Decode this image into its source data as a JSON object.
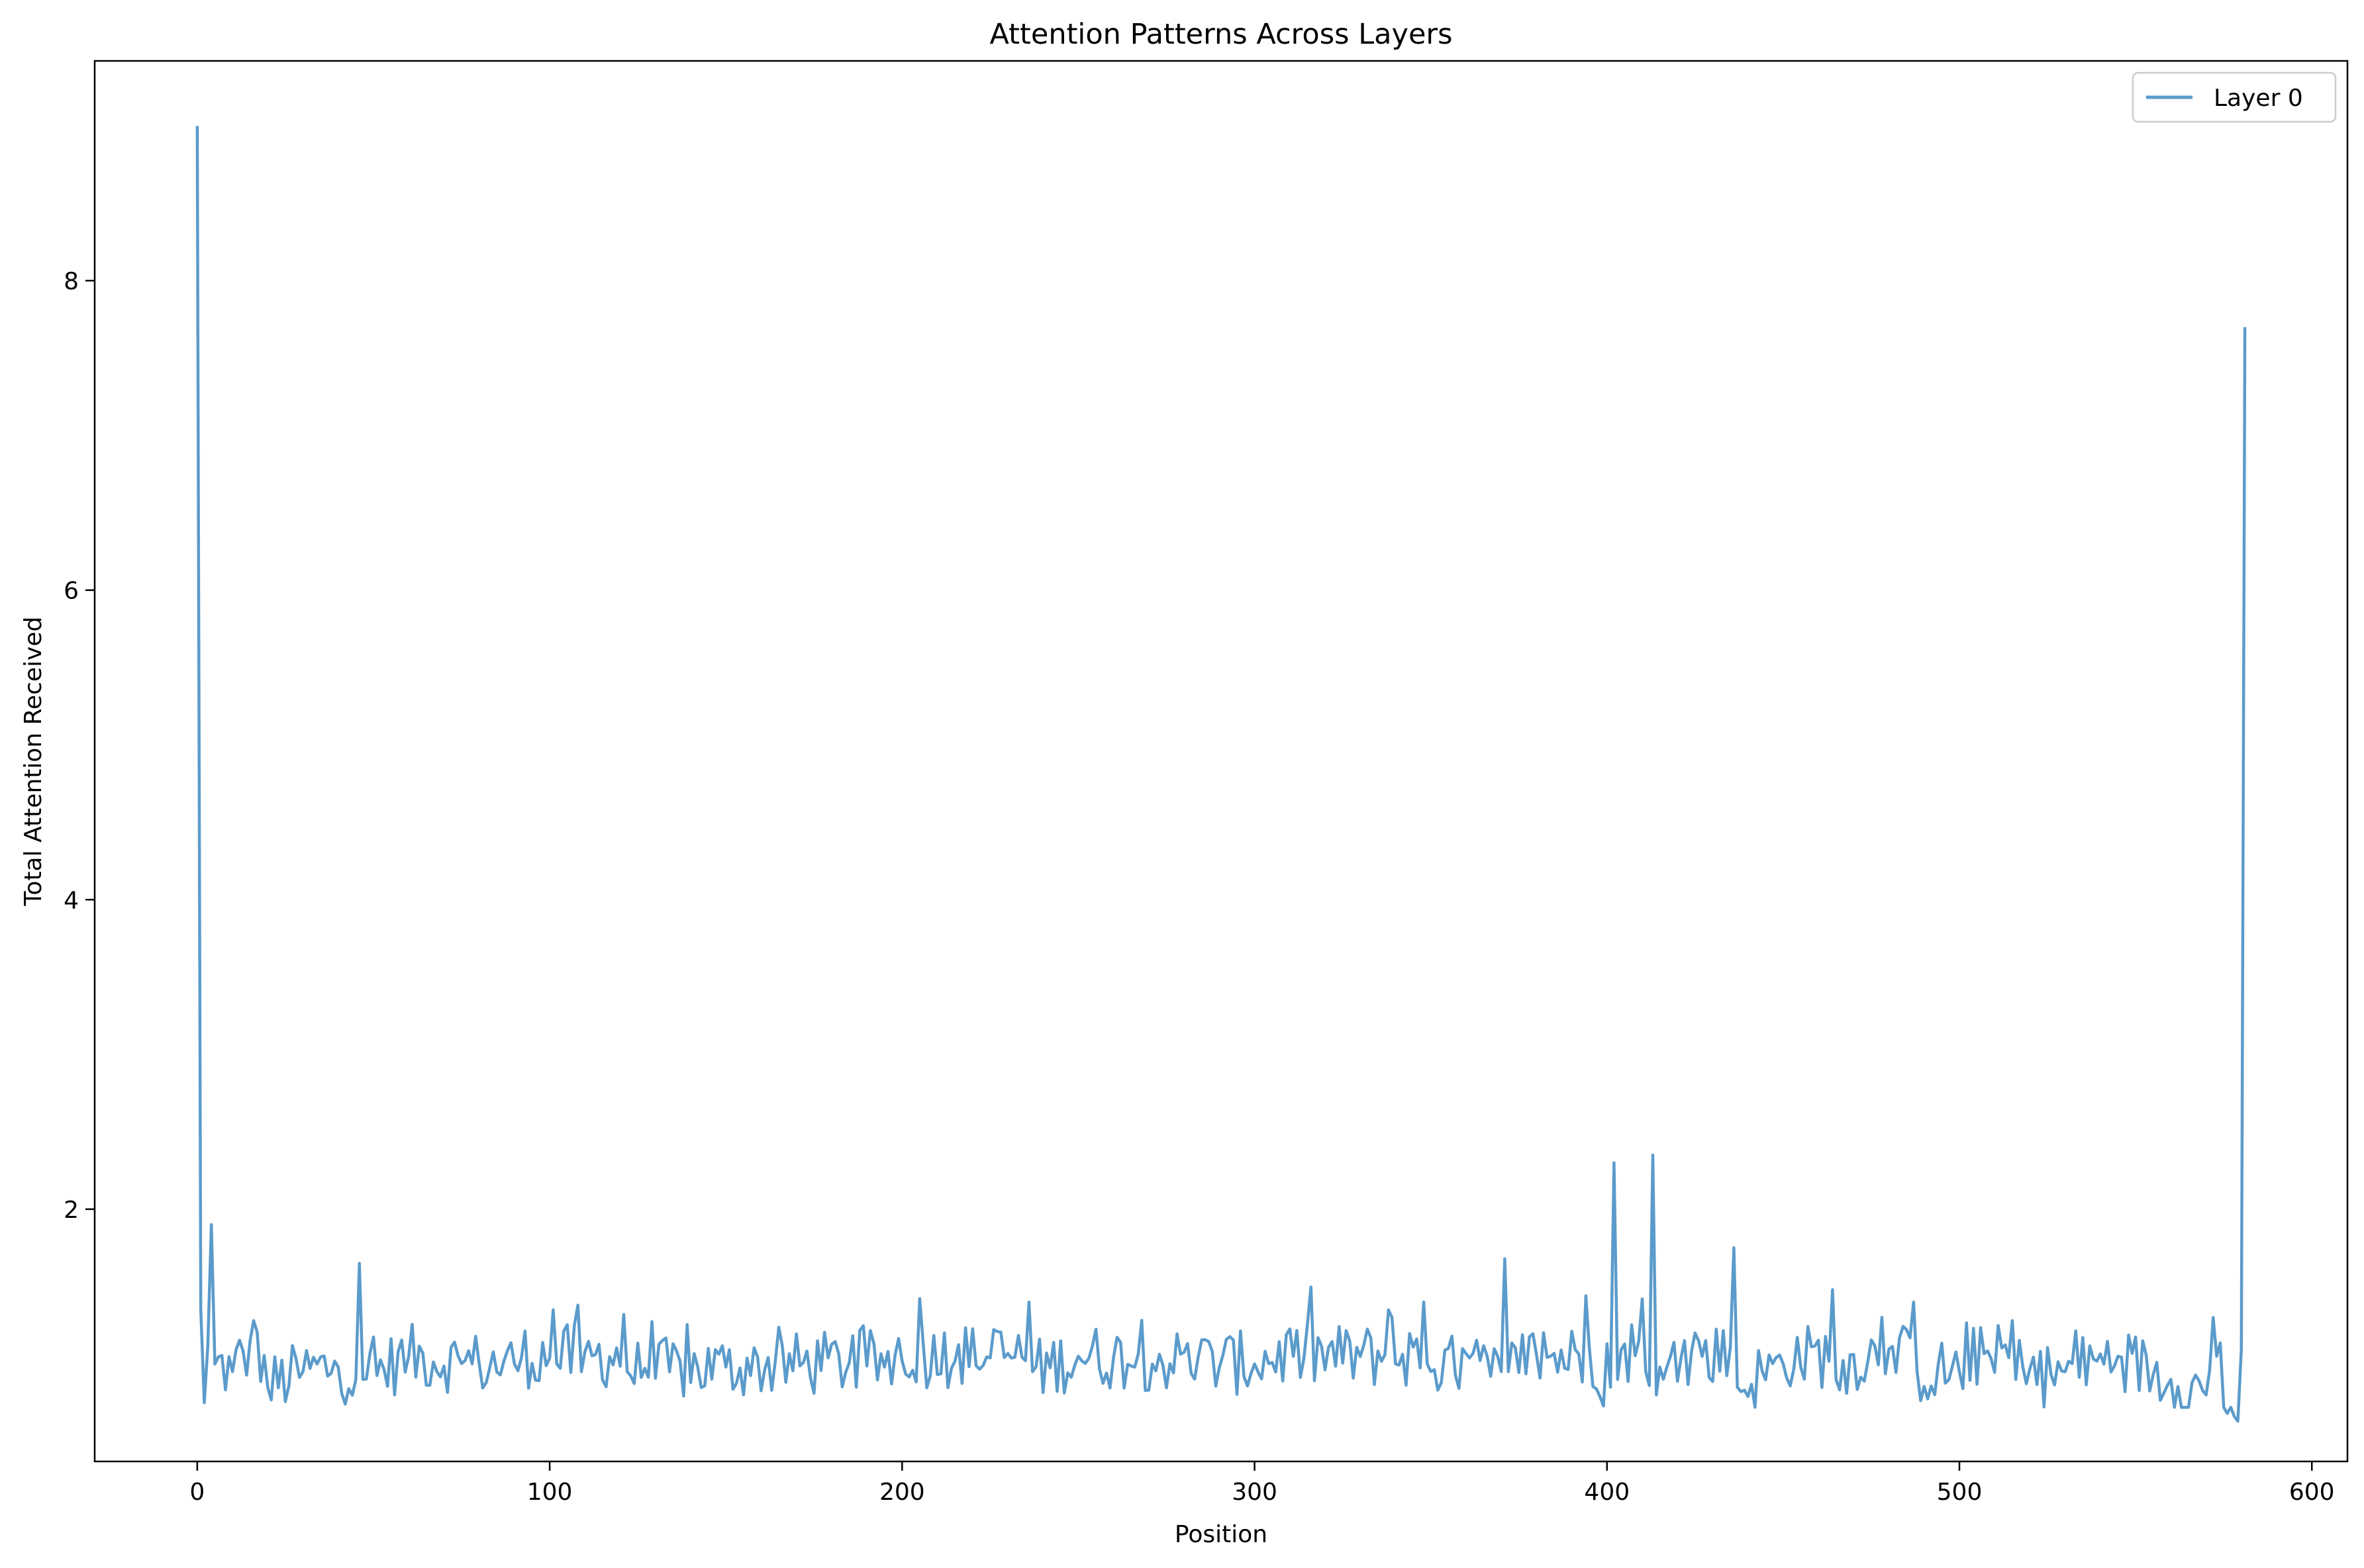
{
  "chart_data": {
    "type": "line",
    "title": "Attention Patterns Across Layers",
    "xlabel": "Position",
    "ylabel": "Total Attention Received",
    "xlim": [
      -29.1,
      610.1
    ],
    "ylim": [
      0.37,
      9.42
    ],
    "xticks": [
      0,
      100,
      200,
      300,
      400,
      500,
      600
    ],
    "yticks": [
      2,
      4,
      6,
      8
    ],
    "grid": false,
    "legend_position": "top-right",
    "series": [
      {
        "name": "Layer 0",
        "color": "#5b9bcb",
        "knots": [
          [
            0,
            9.0
          ],
          [
            1,
            1.35
          ],
          [
            2,
            0.75
          ],
          [
            4,
            1.9
          ],
          [
            5,
            1.0
          ],
          [
            10,
            0.95
          ],
          [
            15,
            1.15
          ],
          [
            16,
            1.28
          ],
          [
            20,
            0.85
          ],
          [
            30,
            0.95
          ],
          [
            40,
            0.98
          ],
          [
            45,
            0.9
          ],
          [
            46,
            1.65
          ],
          [
            47,
            0.9
          ],
          [
            60,
            1.05
          ],
          [
            80,
            1.0
          ],
          [
            90,
            1.0
          ],
          [
            101,
            1.35
          ],
          [
            102,
            1.0
          ],
          [
            108,
            1.38
          ],
          [
            109,
            0.95
          ],
          [
            121,
            1.32
          ],
          [
            122,
            0.95
          ],
          [
            150,
            0.98
          ],
          [
            200,
            1.02
          ],
          [
            212,
            1.2
          ],
          [
            236,
            1.4
          ],
          [
            237,
            0.95
          ],
          [
            250,
            1.05
          ],
          [
            300,
            1.0
          ],
          [
            338,
            1.35
          ],
          [
            339,
            1.3
          ],
          [
            340,
            1.0
          ],
          [
            348,
            1.4
          ],
          [
            349,
            1.0
          ],
          [
            370,
            0.95
          ],
          [
            371,
            1.68
          ],
          [
            372,
            0.95
          ],
          [
            394,
            1.44
          ],
          [
            395,
            1.1
          ],
          [
            401,
            0.85
          ],
          [
            402,
            2.3
          ],
          [
            403,
            0.9
          ],
          [
            410,
            1.42
          ],
          [
            411,
            0.95
          ],
          [
            413,
            2.35
          ],
          [
            414,
            0.8
          ],
          [
            425,
            1.2
          ],
          [
            436,
            1.75
          ],
          [
            437,
            0.85
          ],
          [
            450,
            1.0
          ],
          [
            464,
            1.48
          ],
          [
            465,
            0.9
          ],
          [
            487,
            1.4
          ],
          [
            488,
            0.95
          ],
          [
            500,
            0.95
          ],
          [
            515,
            1.28
          ],
          [
            516,
            0.9
          ],
          [
            530,
            0.95
          ],
          [
            545,
            1.05
          ],
          [
            560,
            0.9
          ],
          [
            570,
            0.8
          ],
          [
            572,
            1.3
          ],
          [
            573,
            1.05
          ],
          [
            576,
            0.68
          ],
          [
            578,
            0.66
          ],
          [
            579,
            0.63
          ],
          [
            581,
            7.7
          ]
        ]
      }
    ]
  }
}
